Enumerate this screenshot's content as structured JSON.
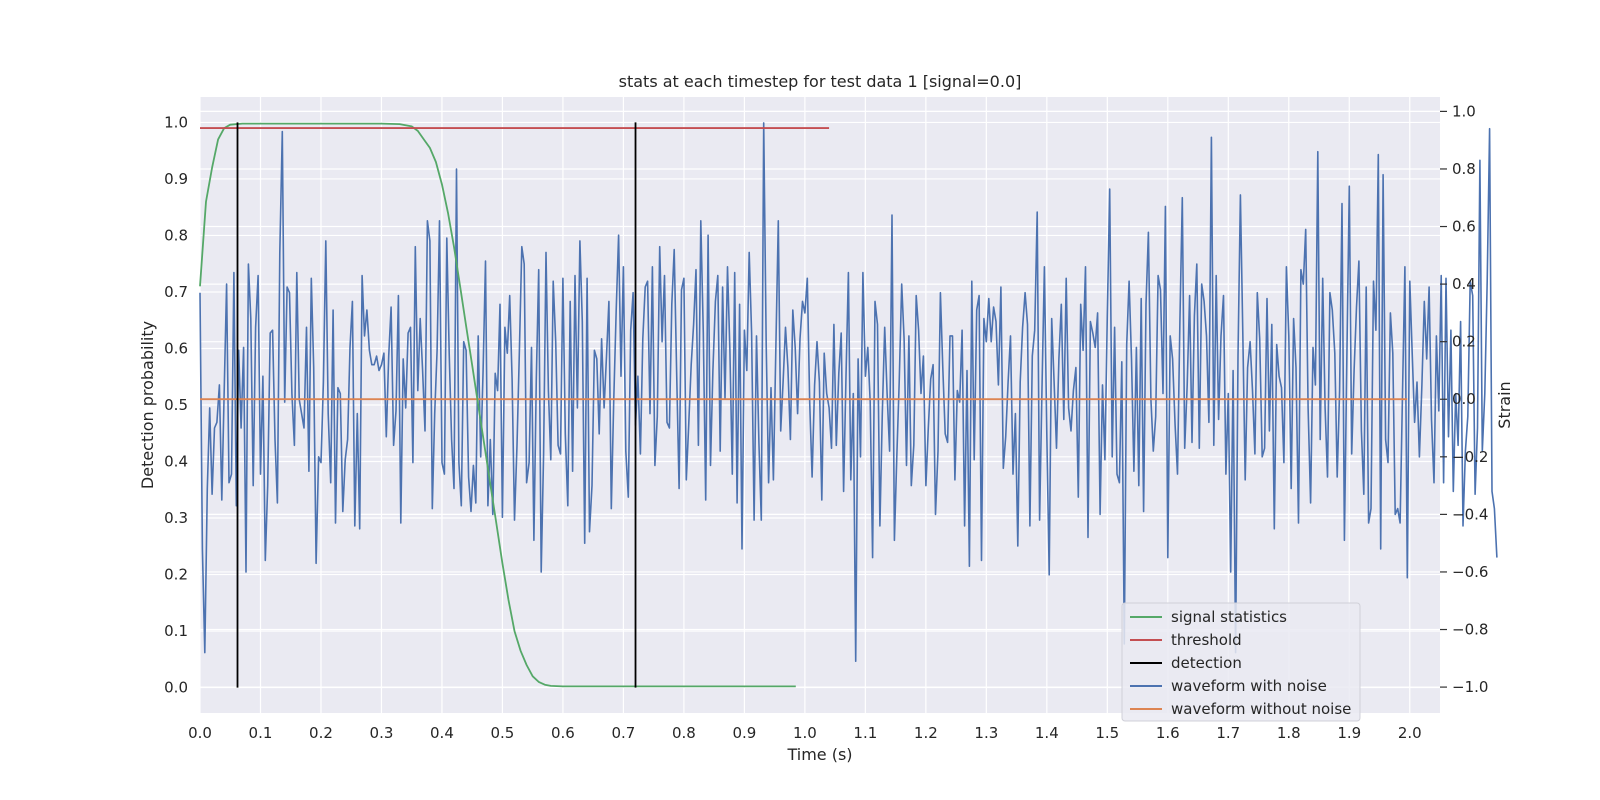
{
  "chart_data": {
    "type": "line",
    "title": "stats at each timestep for test data 1 [signal=0.0]",
    "xlabel": "Time (s)",
    "ylabel": "Detection probability",
    "y2label": "Strain",
    "xlim": [
      0.0,
      2.05
    ],
    "ylim": [
      -0.045,
      1.045
    ],
    "y2lim": [
      -1.09,
      1.05
    ],
    "xticks": [
      "0.0",
      "0.1",
      "0.2",
      "0.3",
      "0.4",
      "0.5",
      "0.6",
      "0.7",
      "0.8",
      "0.9",
      "1.0",
      "1.1",
      "1.2",
      "1.3",
      "1.4",
      "1.5",
      "1.6",
      "1.7",
      "1.8",
      "1.9",
      "2.0"
    ],
    "yticks": [
      "0.0",
      "0.1",
      "0.2",
      "0.3",
      "0.4",
      "0.5",
      "0.6",
      "0.7",
      "0.8",
      "0.9",
      "1.0"
    ],
    "y2ticks": [
      "−1.0",
      "−0.8",
      "−0.6",
      "−0.4",
      "−0.2",
      "0.0",
      "0.2",
      "0.4",
      "0.6",
      "0.8",
      "1.0"
    ],
    "grid": true,
    "legend_position": "lower-right",
    "colors": {
      "signal": "#55a868",
      "threshold": "#c44e52",
      "detection": "#000000",
      "noisy": "#4c72b0",
      "clean": "#dd8452",
      "background": "#eaeaf2",
      "grid": "#ffffff"
    },
    "series": [
      {
        "name": "signal statistics",
        "axis": "left",
        "x": [
          0.0,
          0.01,
          0.02,
          0.03,
          0.04,
          0.05,
          0.07,
          0.1,
          0.15,
          0.2,
          0.25,
          0.3,
          0.33,
          0.35,
          0.36,
          0.37,
          0.38,
          0.39,
          0.4,
          0.41,
          0.42,
          0.43,
          0.44,
          0.45,
          0.46,
          0.47,
          0.48,
          0.49,
          0.5,
          0.51,
          0.52,
          0.53,
          0.54,
          0.55,
          0.56,
          0.57,
          0.58,
          0.6,
          0.65,
          0.7,
          0.75,
          0.8,
          0.85,
          0.9,
          0.95,
          0.985
        ],
        "y": [
          0.71,
          0.86,
          0.92,
          0.97,
          0.99,
          0.996,
          0.998,
          0.998,
          0.998,
          0.998,
          0.998,
          0.998,
          0.997,
          0.993,
          0.985,
          0.97,
          0.955,
          0.93,
          0.89,
          0.84,
          0.78,
          0.71,
          0.64,
          0.57,
          0.5,
          0.43,
          0.36,
          0.29,
          0.22,
          0.155,
          0.1,
          0.065,
          0.04,
          0.02,
          0.01,
          0.005,
          0.003,
          0.002,
          0.002,
          0.002,
          0.002,
          0.002,
          0.002,
          0.002,
          0.002,
          0.002
        ]
      },
      {
        "name": "threshold",
        "axis": "left",
        "x": [
          0.0,
          1.04
        ],
        "y": [
          0.99,
          0.99
        ]
      },
      {
        "name": "detection",
        "axis": "left",
        "segments": [
          {
            "x": 0.062,
            "y": [
              0.0,
              1.0
            ]
          },
          {
            "x": 0.72,
            "y": [
              0.0,
              1.0
            ]
          }
        ]
      },
      {
        "name": "waveform with noise",
        "axis": "right",
        "x_start": 0.0,
        "x_step": 0.004,
        "values": [
          0.37,
          -0.52,
          -0.88,
          -0.31,
          -0.03,
          -0.33,
          -0.1,
          -0.08,
          0.05,
          -0.35,
          0.03,
          0.4,
          -0.29,
          -0.26,
          0.44,
          -0.37,
          0.17,
          -0.1,
          0.18,
          -0.6,
          0.47,
          0.28,
          -0.3,
          0.25,
          0.43,
          -0.26,
          0.08,
          -0.56,
          -0.3,
          0.23,
          0.24,
          -0.14,
          -0.36,
          0.51,
          0.93,
          -0.01,
          0.39,
          0.37,
          0.02,
          -0.16,
          0.44,
          0.0,
          -0.05,
          -0.1,
          0.25,
          -0.25,
          0.42,
          0.11,
          -0.57,
          -0.2,
          -0.22,
          0.06,
          0.55,
          -0.05,
          -0.29,
          0.31,
          -0.43,
          0.04,
          0.02,
          -0.39,
          -0.21,
          -0.14,
          0.18,
          0.34,
          -0.44,
          -0.05,
          -0.45,
          0.43,
          0.22,
          0.31,
          0.17,
          0.12,
          0.12,
          0.15,
          0.1,
          0.12,
          0.16,
          -0.13,
          0.15,
          0.32,
          -0.16,
          -0.04,
          0.36,
          -0.43,
          0.14,
          -0.03,
          0.23,
          0.25,
          -0.22,
          0.53,
          0.03,
          0.28,
          0.1,
          -0.11,
          0.62,
          0.55,
          -0.38,
          -0.05,
          0.17,
          0.62,
          -0.22,
          -0.26,
          0.56,
          0.16,
          -0.14,
          -0.31,
          0.8,
          -0.22,
          -0.37,
          0.2,
          0.17,
          -0.27,
          -0.39,
          -0.23,
          -0.36,
          0.22,
          -0.2,
          0.1,
          0.48,
          -0.37,
          -0.14,
          -0.4,
          0.09,
          0.03,
          0.33,
          -0.41,
          0.25,
          0.16,
          0.36,
          0.07,
          -0.42,
          -0.16,
          0.17,
          0.53,
          0.47,
          -0.29,
          -0.22,
          0.18,
          -0.49,
          0.07,
          0.45,
          -0.6,
          -0.19,
          0.51,
          0.03,
          -0.21,
          0.41,
          0.2,
          -0.16,
          -0.19,
          0.42,
          -0.12,
          -0.37,
          0.34,
          -0.25,
          0.43,
          -0.03,
          0.55,
          0.27,
          -0.5,
          0.42,
          -0.46,
          -0.3,
          0.17,
          0.14,
          -0.12,
          0.21,
          -0.03,
          0.15,
          0.34,
          -0.38,
          -0.01,
          0.31,
          0.57,
          0.08,
          0.46,
          -0.18,
          -0.34,
          0.24,
          0.37,
          -0.09,
          0.08,
          -0.19,
          0.21,
          0.39,
          0.41,
          -0.05,
          0.46,
          -0.23,
          -0.06,
          0.53,
          0.2,
          0.43,
          -0.08,
          -0.1,
          0.33,
          0.52,
          0.1,
          -0.31,
          0.38,
          0.42,
          -0.28,
          -0.09,
          0.12,
          0.26,
          0.45,
          -0.16,
          0.62,
          0.23,
          -0.35,
          0.57,
          -0.23,
          0.1,
          0.34,
          0.43,
          -0.18,
          0.39,
          0.0,
          0.46,
          0.17,
          -0.26,
          0.44,
          -0.36,
          0.33,
          -0.52,
          0.24,
          0.1,
          0.51,
          0.23,
          -0.42,
          0.22,
          -0.15,
          -0.42,
          0.96,
          0.19,
          -0.29,
          0.04,
          -0.28,
          0.17,
          0.62,
          -0.11,
          0.06,
          0.25,
          0.11,
          -0.14,
          0.31,
          0.18,
          -0.05,
          0.21,
          0.34,
          0.3,
          0.42,
          -0.01,
          -0.27,
          0.05,
          0.2,
          0.06,
          -0.35,
          0.16,
          0.02,
          -0.03,
          -0.17,
          0.26,
          -0.16,
          0.09,
          0.23,
          -0.32,
          0.08,
          0.44,
          -0.28,
          0.02,
          -0.91,
          0.14,
          -0.2,
          0.44,
          0.08,
          0.18,
          -0.01,
          -0.55,
          0.34,
          0.26,
          -0.44,
          -0.05,
          0.25,
          0.02,
          -0.18,
          0.64,
          -0.49,
          -0.2,
          0.06,
          0.4,
          0.21,
          -0.23,
          0.22,
          -0.3,
          -0.16,
          0.36,
          0.24,
          0.02,
          0.15,
          -0.3,
          -0.1,
          0.07,
          0.12,
          -0.4,
          -0.18,
          0.37,
          0.11,
          -0.12,
          -0.15,
          0.22,
          0.22,
          -0.28,
          0.03,
          -0.01,
          0.24,
          -0.44,
          0.1,
          -0.58,
          0.41,
          -0.21,
          0.31,
          0.36,
          -0.56,
          0.28,
          0.2,
          0.35,
          0.2,
          0.32,
          0.27,
          0.05,
          0.39,
          -0.24,
          -0.13,
          0.06,
          0.22,
          -0.26,
          -0.05,
          -0.51,
          0.06,
          0.25,
          0.37,
          0.26,
          -0.44,
          0.15,
          0.24,
          0.65,
          -0.42,
          0.04,
          0.46,
          -0.12,
          -0.61,
          0.28,
          0.06,
          -0.17,
          0.14,
          0.33,
          -0.07,
          0.42,
          -0.03,
          -0.11,
          0.03,
          0.11,
          -0.34,
          0.33,
          0.17,
          0.46,
          -0.48,
          0.27,
          0.23,
          0.18,
          0.3,
          -0.4,
          0.05,
          -0.21,
          0.29,
          0.73,
          -0.2,
          0.25,
          -0.26,
          -0.29,
          0.13,
          -0.85,
          0.19,
          0.41,
          0.14,
          -0.25,
          0.18,
          -0.3,
          0.35,
          -0.39,
          0.33,
          0.58,
          0.0,
          -0.18,
          -0.06,
          0.43,
          0.38,
          0.02,
          0.67,
          -0.55,
          0.22,
          0.14,
          -0.09,
          -0.26,
          0.27,
          0.7,
          -0.17,
          0.05,
          0.36,
          -0.15,
          0.29,
          0.47,
          -0.17,
          0.4,
          0.34,
          0.22,
          -0.08,
          0.91,
          -0.16,
          0.43,
          -0.07,
          0.22,
          0.36,
          -0.26,
          0.02,
          -0.6,
          0.1,
          -0.88,
          0.15,
          0.71,
          0.23,
          -0.28,
          0.11,
          0.2,
          0.03,
          -0.19,
          0.37,
          0.21,
          -0.2,
          -0.17,
          0.35,
          -0.11,
          0.26,
          -0.45,
          0.19,
          0.08,
          0.04,
          -0.22,
          0.46,
          0.22,
          -0.31,
          0.28,
          0.11,
          -0.43,
          0.45,
          0.4,
          0.59,
          -0.03,
          -0.36,
          0.18,
          0.05,
          0.86,
          -0.14,
          0.42,
          -0.03,
          -0.27,
          0.37,
          0.31,
          0.16,
          -0.27,
          0.03,
          0.68,
          -0.49,
          0.13,
          0.74,
          -0.19,
          0.1,
          0.32,
          0.48,
          -0.11,
          -0.33,
          0.39,
          -0.43,
          -0.38,
          0.41,
          0.24,
          0.85,
          -0.52,
          0.78,
          -0.14,
          -0.22,
          0.3,
          0.16,
          -0.4,
          -0.38,
          -0.43,
          0.02,
          0.46,
          -0.62,
          0.41,
          0.16,
          -0.08,
          0.06,
          -0.2,
          0.05,
          0.34,
          0.14,
          0.39,
          -0.07,
          -0.29,
          0.22,
          -0.04,
          0.43,
          -0.29,
          0.42,
          -0.13,
          0.24,
          -0.32,
          0.02,
          -0.16,
          0.27,
          -0.44,
          -0.18,
          -0.06,
          0.41,
          0.36,
          -0.33,
          -0.1,
          0.83,
          -0.18,
          0.02,
          0.41,
          0.94,
          -0.32,
          -0.38,
          -0.55
        ]
      },
      {
        "name": "waveform without noise",
        "axis": "right",
        "x": [
          0.0,
          1.996
        ],
        "y": [
          0.0,
          0.0
        ]
      }
    ]
  }
}
